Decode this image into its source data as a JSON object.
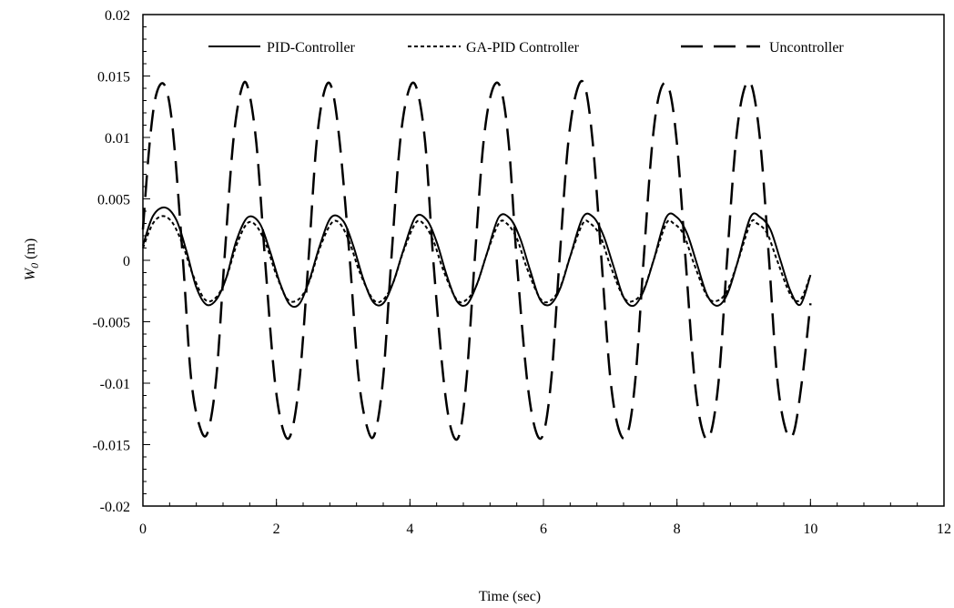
{
  "chart_data": {
    "type": "line",
    "title": "",
    "xlabel": "Time (sec)",
    "ylabel_main": "W",
    "ylabel_sub": "0",
    "ylabel_unit": " (m)",
    "xlim": [
      0,
      12
    ],
    "ylim": [
      -0.02,
      0.02
    ],
    "x_ticks": [
      0,
      2,
      4,
      6,
      8,
      10,
      12
    ],
    "x_tick_labels": [
      "0",
      "2",
      "4",
      "6",
      "8",
      "10",
      "12"
    ],
    "y_ticks": [
      0.02,
      0.015,
      0.01,
      0.005,
      0,
      -0.005,
      -0.01,
      -0.015,
      -0.02
    ],
    "y_tick_labels": [
      "0.02",
      "0.015",
      "0.01",
      "0.005",
      "0",
      "-0.005",
      "-0.01",
      "-0.015",
      "-0.02"
    ],
    "grid": false,
    "legend_position": "top",
    "series": [
      {
        "name": "PID-Controller",
        "style": "solid",
        "color": "#000000",
        "x": [
          0,
          0.15,
          0.33,
          0.5,
          0.65,
          0.8,
          0.95,
          1.1,
          1.25,
          1.4,
          1.57,
          1.75,
          1.9,
          2.05,
          2.2,
          2.35,
          2.5,
          2.65,
          2.82,
          3.0,
          3.15,
          3.3,
          3.45,
          3.6,
          3.75,
          3.9,
          4.08,
          4.25,
          4.4,
          4.55,
          4.7,
          4.85,
          5.0,
          5.15,
          5.33,
          5.5,
          5.65,
          5.8,
          5.95,
          6.1,
          6.25,
          6.4,
          6.59,
          6.75,
          6.9,
          7.05,
          7.2,
          7.35,
          7.5,
          7.65,
          7.84,
          8.0,
          8.15,
          8.3,
          8.45,
          8.6,
          8.75,
          8.9,
          9.1,
          9.25,
          9.4,
          9.55,
          9.7,
          9.85,
          10.0
        ],
        "y": [
          0.0012,
          0.0036,
          0.0043,
          0.0033,
          0.0008,
          -0.0022,
          -0.0036,
          -0.0032,
          -0.0014,
          0.0016,
          0.0035,
          0.003,
          0.0008,
          -0.0018,
          -0.0036,
          -0.0035,
          -0.0015,
          0.0012,
          0.0035,
          0.0032,
          0.0012,
          -0.0015,
          -0.0034,
          -0.0035,
          -0.0018,
          0.0008,
          0.0035,
          0.0033,
          0.0015,
          -0.0012,
          -0.0033,
          -0.0036,
          -0.002,
          0.0005,
          0.0035,
          0.0034,
          0.0018,
          -0.0008,
          -0.0032,
          -0.0036,
          -0.0023,
          0.0003,
          0.0035,
          0.0035,
          0.002,
          -0.0005,
          -0.003,
          -0.0037,
          -0.0025,
          0.0,
          0.0035,
          0.0035,
          0.0022,
          -0.0003,
          -0.0028,
          -0.0037,
          -0.0028,
          -0.0003,
          0.0035,
          0.0035,
          0.0025,
          0.0,
          -0.0025,
          -0.0036,
          -0.0012
        ]
      },
      {
        "name": "GA-PID Controller",
        "style": "dotted",
        "color": "#000000",
        "x": [
          0,
          0.15,
          0.3,
          0.45,
          0.6,
          0.75,
          0.93,
          1.1,
          1.25,
          1.4,
          1.56,
          1.7,
          1.85,
          2.0,
          2.17,
          2.35,
          2.5,
          2.65,
          2.82,
          2.95,
          3.1,
          3.25,
          3.45,
          3.6,
          3.75,
          3.9,
          4.08,
          4.2,
          4.35,
          4.5,
          4.7,
          4.85,
          5.0,
          5.15,
          5.33,
          5.45,
          5.6,
          5.75,
          5.95,
          6.1,
          6.25,
          6.4,
          6.59,
          6.7,
          6.85,
          7.0,
          7.2,
          7.35,
          7.5,
          7.65,
          7.84,
          7.95,
          8.1,
          8.25,
          8.45,
          8.6,
          8.75,
          8.9,
          9.1,
          9.2,
          9.35,
          9.5,
          9.7,
          9.85,
          10.0
        ],
        "y": [
          0.001,
          0.003,
          0.0036,
          0.003,
          0.0012,
          -0.0012,
          -0.0032,
          -0.003,
          -0.0014,
          0.0012,
          0.003,
          0.0028,
          0.0012,
          -0.0012,
          -0.0032,
          -0.0031,
          -0.0016,
          0.001,
          0.003,
          0.003,
          0.0014,
          -0.001,
          -0.0032,
          -0.0032,
          -0.0018,
          0.0007,
          0.003,
          0.003,
          0.0016,
          -0.0008,
          -0.0032,
          -0.0032,
          -0.002,
          0.0005,
          0.003,
          0.003,
          0.0018,
          -0.0006,
          -0.0031,
          -0.0033,
          -0.0022,
          0.0003,
          0.003,
          0.003,
          0.002,
          -0.0004,
          -0.003,
          -0.0033,
          -0.0024,
          0.0,
          0.003,
          0.003,
          0.0021,
          -0.0002,
          -0.0029,
          -0.0033,
          -0.0025,
          -0.0003,
          0.003,
          0.003,
          0.0022,
          0.0,
          -0.0028,
          -0.0032,
          -0.0012
        ]
      },
      {
        "name": "Uncontroller",
        "style": "dashed",
        "color": "#000000",
        "x": [
          0,
          0.1,
          0.2,
          0.33,
          0.45,
          0.6,
          0.72,
          0.85,
          0.97,
          1.1,
          1.22,
          1.35,
          1.47,
          1.57,
          1.7,
          1.83,
          1.97,
          2.1,
          2.22,
          2.35,
          2.48,
          2.6,
          2.72,
          2.83,
          2.95,
          3.1,
          3.23,
          3.37,
          3.48,
          3.6,
          3.72,
          3.85,
          3.98,
          4.1,
          4.23,
          4.35,
          4.5,
          4.62,
          4.74,
          4.85,
          4.97,
          5.1,
          5.23,
          5.36,
          5.48,
          5.6,
          5.75,
          5.88,
          6.0,
          6.12,
          6.24,
          6.37,
          6.5,
          6.62,
          6.74,
          6.87,
          7.0,
          7.13,
          7.26,
          7.38,
          7.5,
          7.63,
          7.75,
          7.88,
          8.0,
          8.13,
          8.26,
          8.38,
          8.5,
          8.63,
          8.75,
          8.88,
          9.0,
          9.12,
          9.25,
          9.38,
          9.5,
          9.63,
          9.75,
          9.88,
          10.0
        ],
        "y": [
          0.0025,
          0.0095,
          0.0135,
          0.0142,
          0.0105,
          0.0,
          -0.0095,
          -0.0135,
          -0.014,
          -0.0095,
          0.0,
          0.0095,
          0.0138,
          0.0141,
          0.0095,
          0.0,
          -0.0095,
          -0.0138,
          -0.0141,
          -0.0095,
          0.0,
          0.0095,
          0.0138,
          0.014,
          0.0095,
          0.0,
          -0.0095,
          -0.0138,
          -0.014,
          -0.0095,
          0.0,
          0.0095,
          0.0138,
          0.014,
          0.0095,
          0.0,
          -0.0095,
          -0.0138,
          -0.0142,
          -0.0095,
          0.0,
          0.0095,
          0.0138,
          0.014,
          0.0095,
          0.0,
          -0.0095,
          -0.0138,
          -0.0141,
          -0.0095,
          0.0,
          0.0095,
          0.0138,
          0.0142,
          0.0095,
          0.0,
          -0.0095,
          -0.0138,
          -0.0141,
          -0.0095,
          0.0,
          0.0095,
          0.0138,
          0.014,
          0.0095,
          0.0,
          -0.0095,
          -0.0138,
          -0.0142,
          -0.0095,
          0.0,
          0.0095,
          0.0138,
          0.0142,
          0.0095,
          0.0,
          -0.0095,
          -0.0138,
          -0.014,
          -0.0095,
          -0.0035
        ]
      }
    ]
  }
}
